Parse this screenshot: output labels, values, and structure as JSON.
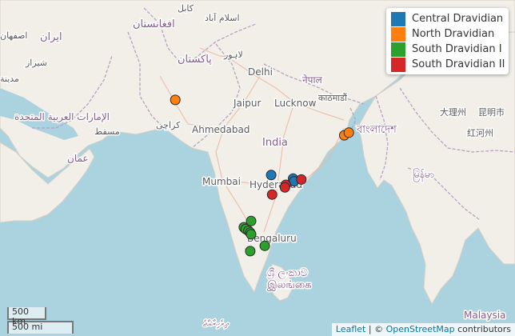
{
  "legend": {
    "items": [
      {
        "label": "Central Dravidian",
        "color": "#1f77b4"
      },
      {
        "label": "North Dravidian",
        "color": "#ff7f0e"
      },
      {
        "label": "South Dravidian I",
        "color": "#2ca02c"
      },
      {
        "label": "South Dravidian II",
        "color": "#d62728"
      }
    ]
  },
  "places": {
    "kabul": "کابل",
    "islamabad": "اسلام آباد",
    "afghanistan": "افغانستان",
    "esfahan": "اصفهان",
    "iran": "ایران",
    "shiraz": "شیراز",
    "pakistan": "پاکستان",
    "lahore": "لاہور",
    "delhi": "Delhi",
    "jaipur": "Jaipur",
    "lucknow": "Lucknow",
    "nepal": "नेपाल",
    "kathmandu": "काठमाडौं",
    "bangladesh": "বাংলাদেশ",
    "uae": "الإمارات العربية المتحدة",
    "muscat": "مسقط",
    "oman": "عمان",
    "karachi": "کراچی",
    "ahmedabad": "Ahmedabad",
    "india": "India",
    "mumbai": "Mumbai",
    "hyderabad": "Hyderabad",
    "bengaluru": "Bengaluru",
    "srilanka_si": "ශ්‍රී ලංකාව",
    "srilanka_ta": "இலங்கை",
    "maldives": "ދިވެހިރާއްޖެ",
    "dali": "大理州",
    "kunming": "昆明市",
    "honghe": "红河州",
    "myanmar": "မြန်မာ",
    "malaysia": "Malaysia",
    "medina": "مدينة"
  },
  "markers": [
    {
      "group": "North Dravidian",
      "lon": 68.5,
      "lat": 28.3
    },
    {
      "group": "North Dravidian",
      "lon": 87.0,
      "lat": 24.3
    },
    {
      "group": "North Dravidian",
      "lon": 87.5,
      "lat": 24.6
    },
    {
      "group": "Central Dravidian",
      "lon": 79.0,
      "lat": 19.8
    },
    {
      "group": "Central Dravidian",
      "lon": 81.4,
      "lat": 19.4
    },
    {
      "group": "Central Dravidian",
      "lon": 81.5,
      "lat": 19.1
    },
    {
      "group": "South Dravidian II",
      "lon": 82.3,
      "lat": 19.3
    },
    {
      "group": "South Dravidian II",
      "lon": 80.6,
      "lat": 18.7
    },
    {
      "group": "South Dravidian II",
      "lon": 80.5,
      "lat": 18.4
    },
    {
      "group": "South Dravidian II",
      "lon": 79.1,
      "lat": 17.6
    },
    {
      "group": "South Dravidian I",
      "lon": 76.8,
      "lat": 14.6
    },
    {
      "group": "South Dravidian I",
      "lon": 76.0,
      "lat": 13.9
    },
    {
      "group": "South Dravidian I",
      "lon": 76.2,
      "lat": 13.7
    },
    {
      "group": "South Dravidian I",
      "lon": 76.5,
      "lat": 13.5
    },
    {
      "group": "South Dravidian I",
      "lon": 76.7,
      "lat": 13.3
    },
    {
      "group": "South Dravidian I",
      "lon": 76.8,
      "lat": 13.1
    },
    {
      "group": "South Dravidian I",
      "lon": 78.3,
      "lat": 11.8
    },
    {
      "group": "South Dravidian I",
      "lon": 76.7,
      "lat": 11.2
    }
  ],
  "scale": {
    "km": "500 km",
    "mi": "500 mi"
  },
  "attribution": {
    "leaflet": "Leaflet",
    "separator": " | © ",
    "osm": "OpenStreetMap",
    "contributors": " contributors"
  }
}
